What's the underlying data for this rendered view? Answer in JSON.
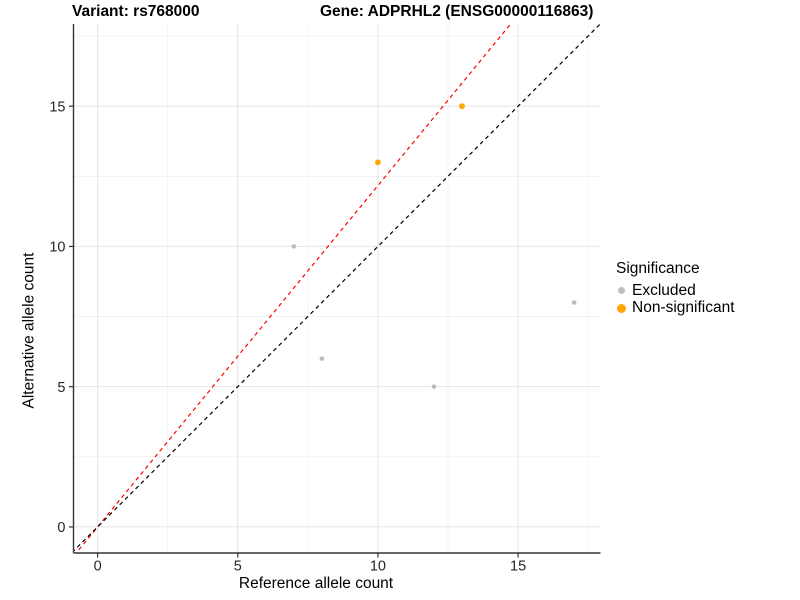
{
  "figure": {
    "title_left": "Variant: rs768000",
    "title_right": "Gene: ADPRHL2 (ENSG00000116863)"
  },
  "chart_data": {
    "type": "scatter",
    "title": "Variant: rs768000  Gene: ADPRHL2 (ENSG00000116863)",
    "xlabel": "Reference allele count",
    "ylabel": "Alternative allele count",
    "xlim": [
      -0.86,
      17.94
    ],
    "ylim": [
      -0.93,
      17.93
    ],
    "x_ticks": [
      0,
      5,
      10,
      15
    ],
    "y_ticks": [
      0,
      5,
      10,
      15
    ],
    "x_minor_ticks": [
      2.5,
      7.5,
      12.5,
      17.5
    ],
    "y_minor_ticks": [
      2.5,
      7.5,
      12.5,
      17.5
    ],
    "grid": true,
    "series": [
      {
        "name": "Excluded",
        "color": "#BDBDBD",
        "point_radius": 2.3,
        "points": [
          [
            7,
            10
          ],
          [
            8,
            6
          ],
          [
            12,
            5
          ],
          [
            17,
            8
          ]
        ]
      },
      {
        "name": "Non-significant",
        "color": "#FFA500",
        "point_radius": 2.9,
        "points": [
          [
            10,
            13
          ],
          [
            13,
            15
          ]
        ]
      }
    ],
    "lines": [
      {
        "name": "ratio-line",
        "slope": 1.217,
        "intercept": 0,
        "color": "#FF0000",
        "style": "dashed"
      },
      {
        "name": "identity-line",
        "slope": 1,
        "intercept": 0,
        "color": "#000000",
        "style": "dashed"
      }
    ],
    "legend": {
      "title": "Significance",
      "position": "right",
      "items": [
        {
          "label": "Excluded",
          "color": "#BDBDBD",
          "dot_size": 7
        },
        {
          "label": "Non-significant",
          "color": "#FFA500",
          "dot_size": 9
        }
      ]
    },
    "colors": {
      "background": "#FFFFFF",
      "axis_line": "#333333",
      "tick_label": "#262626",
      "grid_major": "#E4E4E4",
      "grid_minor": "#F1F1F1"
    }
  }
}
